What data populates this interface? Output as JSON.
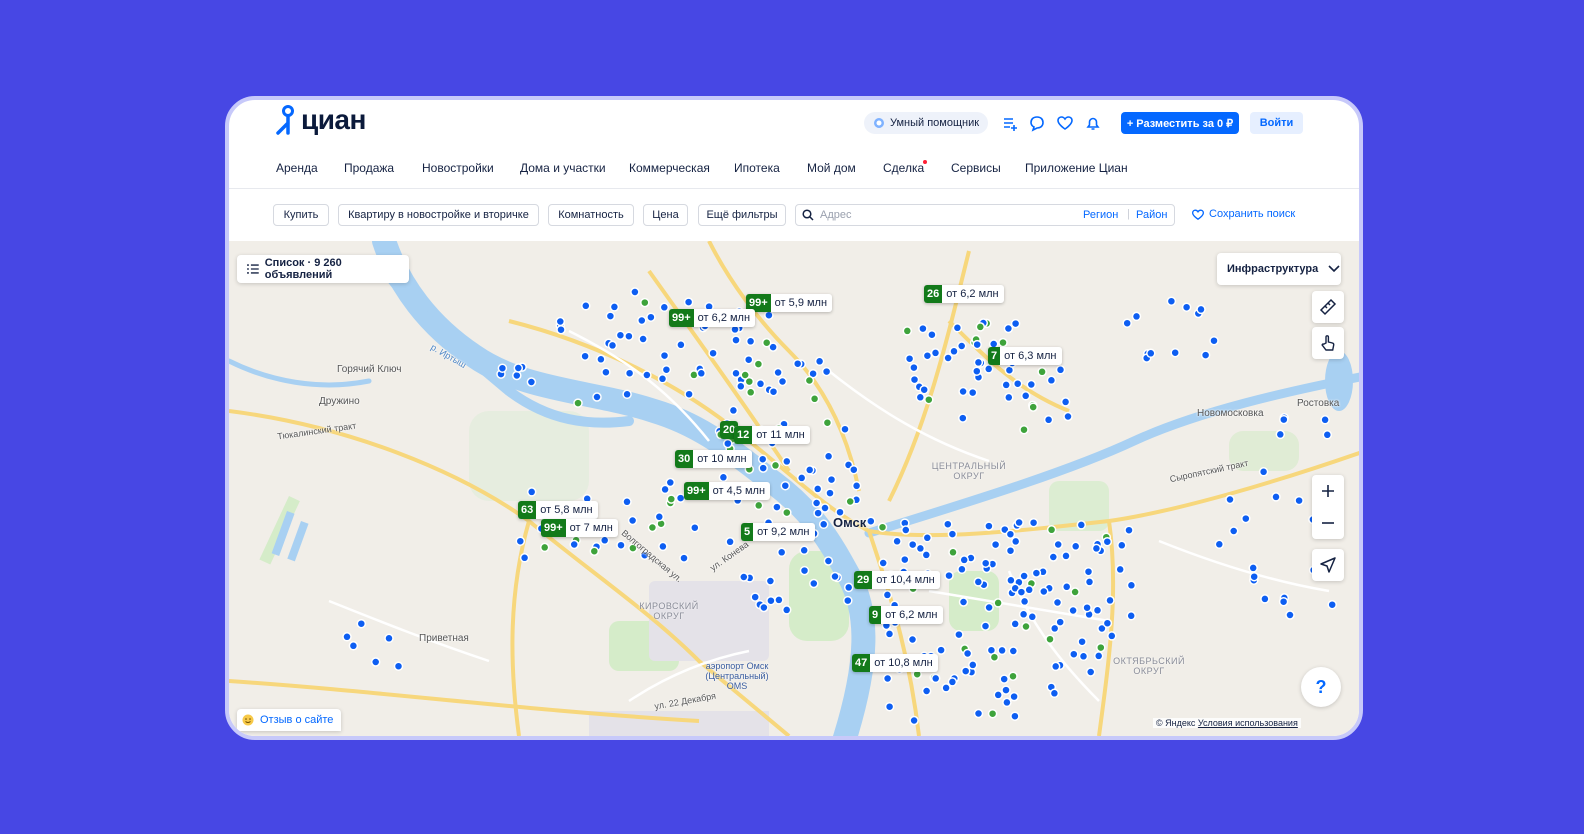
{
  "header": {
    "logo": "циан",
    "assistant": "Умный помощник",
    "post_button": "+ Разместить за 0 ₽",
    "login": "Войти"
  },
  "nav": [
    "Аренда",
    "Продажа",
    "Новостройки",
    "Дома и участки",
    "Коммерческая",
    "Ипотека",
    "Мой дом",
    "Сделка",
    "Сервисы",
    "Приложение Циан"
  ],
  "filters": {
    "buttons": [
      "Купить",
      "Квартиру в новостройке и вторичке",
      "Комнатность",
      "Цена",
      "Ещё фильтры"
    ],
    "search_placeholder": "Адрес",
    "region": "Регион",
    "district": "Район",
    "save_search": "Сохранить поиск"
  },
  "map": {
    "list_button": "Список · 9 260 объявлений",
    "infrastructure": "Инфраструктура",
    "markers": [
      {
        "count": "99+",
        "price": "от 5,9 млн"
      },
      {
        "count": "99+",
        "price": "от 6,2 млн"
      },
      {
        "count": "26",
        "price": "от 6,2 млн"
      },
      {
        "count": "7",
        "price": "от 6,3 млн"
      },
      {
        "count": "20",
        "price": ""
      },
      {
        "count": "12",
        "price": "от 11 млн"
      },
      {
        "count": "30",
        "price": "от 10 млн"
      },
      {
        "count": "99+",
        "price": "от 4,5 млн"
      },
      {
        "count": "63",
        "price": "от 5,8 млн"
      },
      {
        "count": "99+",
        "price": "от 7 млн"
      },
      {
        "count": "5",
        "price": "от 9,2 млн"
      },
      {
        "count": "29",
        "price": "от 10,4 млн"
      },
      {
        "count": "9",
        "price": "от 6,2 млн"
      },
      {
        "count": "47",
        "price": "от 10,8 млн"
      }
    ],
    "city": "Омск",
    "places": [
      "Горячий Ключ",
      "Дружино",
      "Тюкалинский тракт",
      "Приветная",
      "Новомосковка",
      "Ростовка",
      "Сыропятский тракт",
      "р. Иртыш",
      "ул. Конева",
      "Волгоградская ул.",
      "ул. 22 Декабря"
    ],
    "districts": [
      "ЦЕНТРАЛЬНЫЙ ОКРУГ",
      "КИРОВСКИЙ ОКРУГ",
      "ОКТЯБРЬСКИЙ ОКРУГ"
    ],
    "airport": "аэропорт Омск (Центральный) OMS",
    "feedback": "Отзыв о сайте",
    "attribution": "© Яндекс",
    "terms": "Условия использования",
    "help": "?"
  }
}
